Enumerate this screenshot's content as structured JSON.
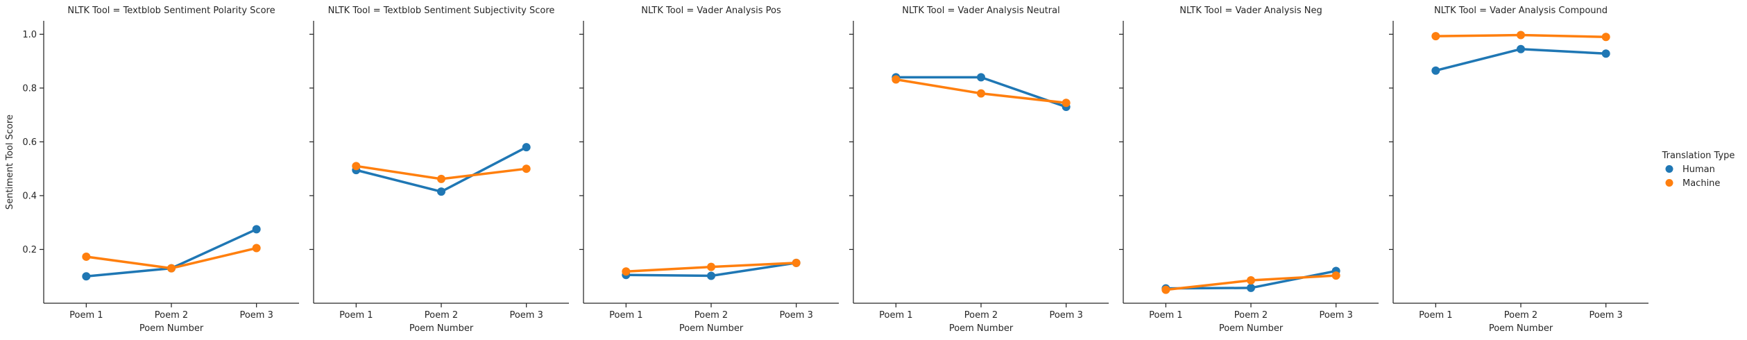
{
  "chart_data": {
    "type": "line",
    "facet_title_prefix": "NLTK Tool = ",
    "ylabel": "Sentiment Tool Score",
    "xlabel": "Poem Number",
    "categories": [
      "Poem 1",
      "Poem 2",
      "Poem 3"
    ],
    "ylim": [
      0.0,
      1.05
    ],
    "yticks": [
      "0.2",
      "0.4",
      "0.6",
      "0.8",
      "1.0"
    ],
    "ytick_values": [
      0.2,
      0.4,
      0.6,
      0.8,
      1.0
    ],
    "grid": false,
    "legend": {
      "title": "Translation Type",
      "placement": "right",
      "entries": [
        "Human",
        "Machine"
      ]
    },
    "colors": {
      "Human": "#1f77b4",
      "Machine": "#ff7f0e"
    },
    "panels": [
      {
        "tool": "Textblob Sentiment Polarity Score",
        "series": [
          {
            "name": "Human",
            "values": [
              0.1,
              0.13,
              0.275
            ]
          },
          {
            "name": "Machine",
            "values": [
              0.173,
              0.13,
              0.205
            ]
          }
        ]
      },
      {
        "tool": "Textblob Sentiment Subjectivity Score",
        "series": [
          {
            "name": "Human",
            "values": [
              0.495,
              0.415,
              0.58
            ]
          },
          {
            "name": "Machine",
            "values": [
              0.51,
              0.462,
              0.5
            ]
          }
        ]
      },
      {
        "tool": "Vader Analysis Pos",
        "series": [
          {
            "name": "Human",
            "values": [
              0.105,
              0.102,
              0.15
            ]
          },
          {
            "name": "Machine",
            "values": [
              0.118,
              0.135,
              0.15
            ]
          }
        ]
      },
      {
        "tool": "Vader Analysis Neutral",
        "series": [
          {
            "name": "Human",
            "values": [
              0.84,
              0.84,
              0.73
            ]
          },
          {
            "name": "Machine",
            "values": [
              0.832,
              0.78,
              0.745
            ]
          }
        ]
      },
      {
        "tool": "Vader Analysis Neg",
        "series": [
          {
            "name": "Human",
            "values": [
              0.055,
              0.057,
              0.12
            ]
          },
          {
            "name": "Machine",
            "values": [
              0.05,
              0.085,
              0.103
            ]
          }
        ]
      },
      {
        "tool": "Vader Analysis Compound",
        "series": [
          {
            "name": "Human",
            "values": [
              0.865,
              0.945,
              0.928
            ]
          },
          {
            "name": "Machine",
            "values": [
              0.993,
              0.997,
              0.99
            ]
          }
        ]
      }
    ]
  }
}
